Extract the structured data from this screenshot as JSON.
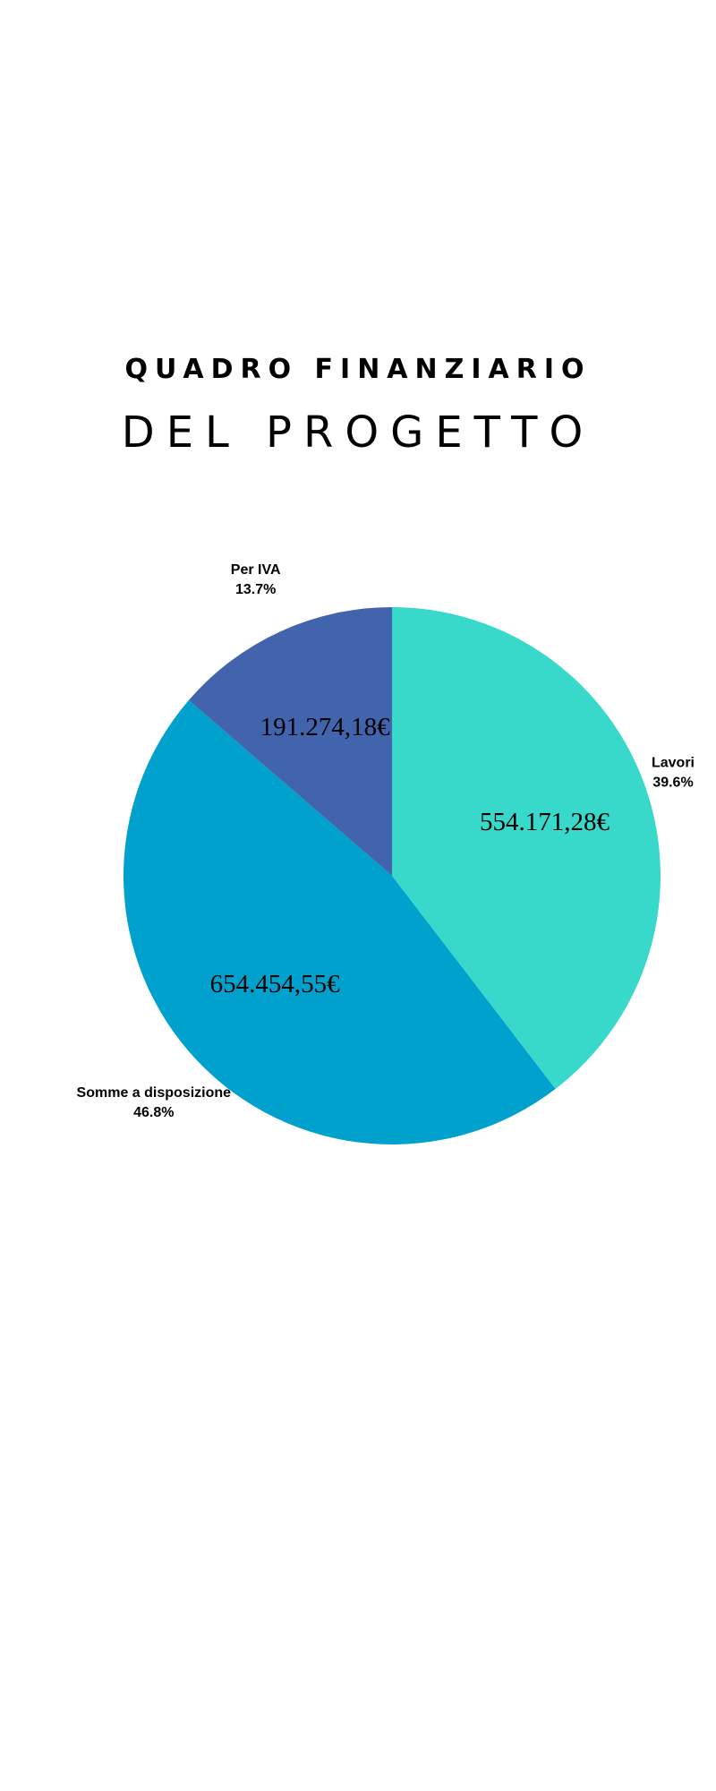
{
  "header": {
    "title_line1": "QUADRO FINANZIARIO",
    "title_line2": "DEL PROGETTO"
  },
  "chart_data": {
    "type": "pie",
    "slices": [
      {
        "label": "Lavori",
        "percent_label": "39.6%",
        "value": 554171.28,
        "value_label": "554.171,28€",
        "color": "#38d8cb"
      },
      {
        "label": "Somme a disposizione",
        "percent_label": "46.8%",
        "value": 654454.55,
        "value_label": "654.454,55€",
        "color": "#00a1cd"
      },
      {
        "label": "Per IVA",
        "percent_label": "13.7%",
        "value": 191274.18,
        "value_label": "191.274,18€",
        "color": "#4164ad"
      }
    ],
    "start": "top",
    "direction": "clockwise",
    "legend": "none"
  }
}
